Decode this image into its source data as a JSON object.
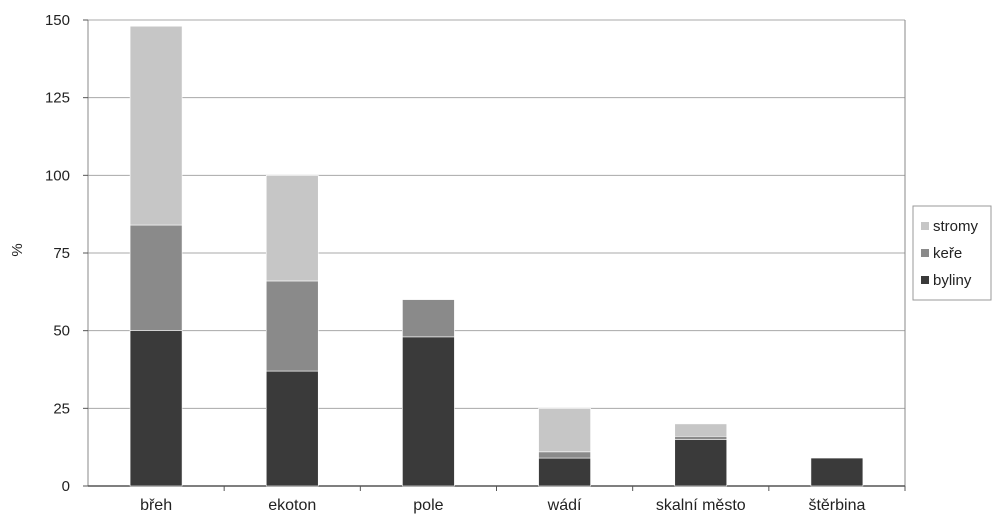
{
  "chart_data": {
    "type": "bar",
    "stacked": true,
    "ylabel": "%",
    "xlabel": "",
    "ylim": [
      0,
      150
    ],
    "yticks": [
      0,
      25,
      50,
      75,
      100,
      125,
      150
    ],
    "grid": true,
    "legend_position": "right",
    "categories": [
      "břeh",
      "ekoton",
      "pole",
      "wádí",
      "skalní město",
      "štěrbina"
    ],
    "series": [
      {
        "name": "byliny",
        "color": "#3a3a3a",
        "values": [
          50,
          37,
          48,
          9,
          15,
          9
        ]
      },
      {
        "name": "keře",
        "color": "#8a8a8a",
        "values": [
          34,
          29,
          12,
          2,
          1,
          0
        ]
      },
      {
        "name": "stromy",
        "color": "#c6c6c6",
        "values": [
          64,
          34,
          0,
          14,
          4,
          0
        ]
      }
    ],
    "legend_order": [
      "stromy",
      "keře",
      "byliny"
    ]
  }
}
